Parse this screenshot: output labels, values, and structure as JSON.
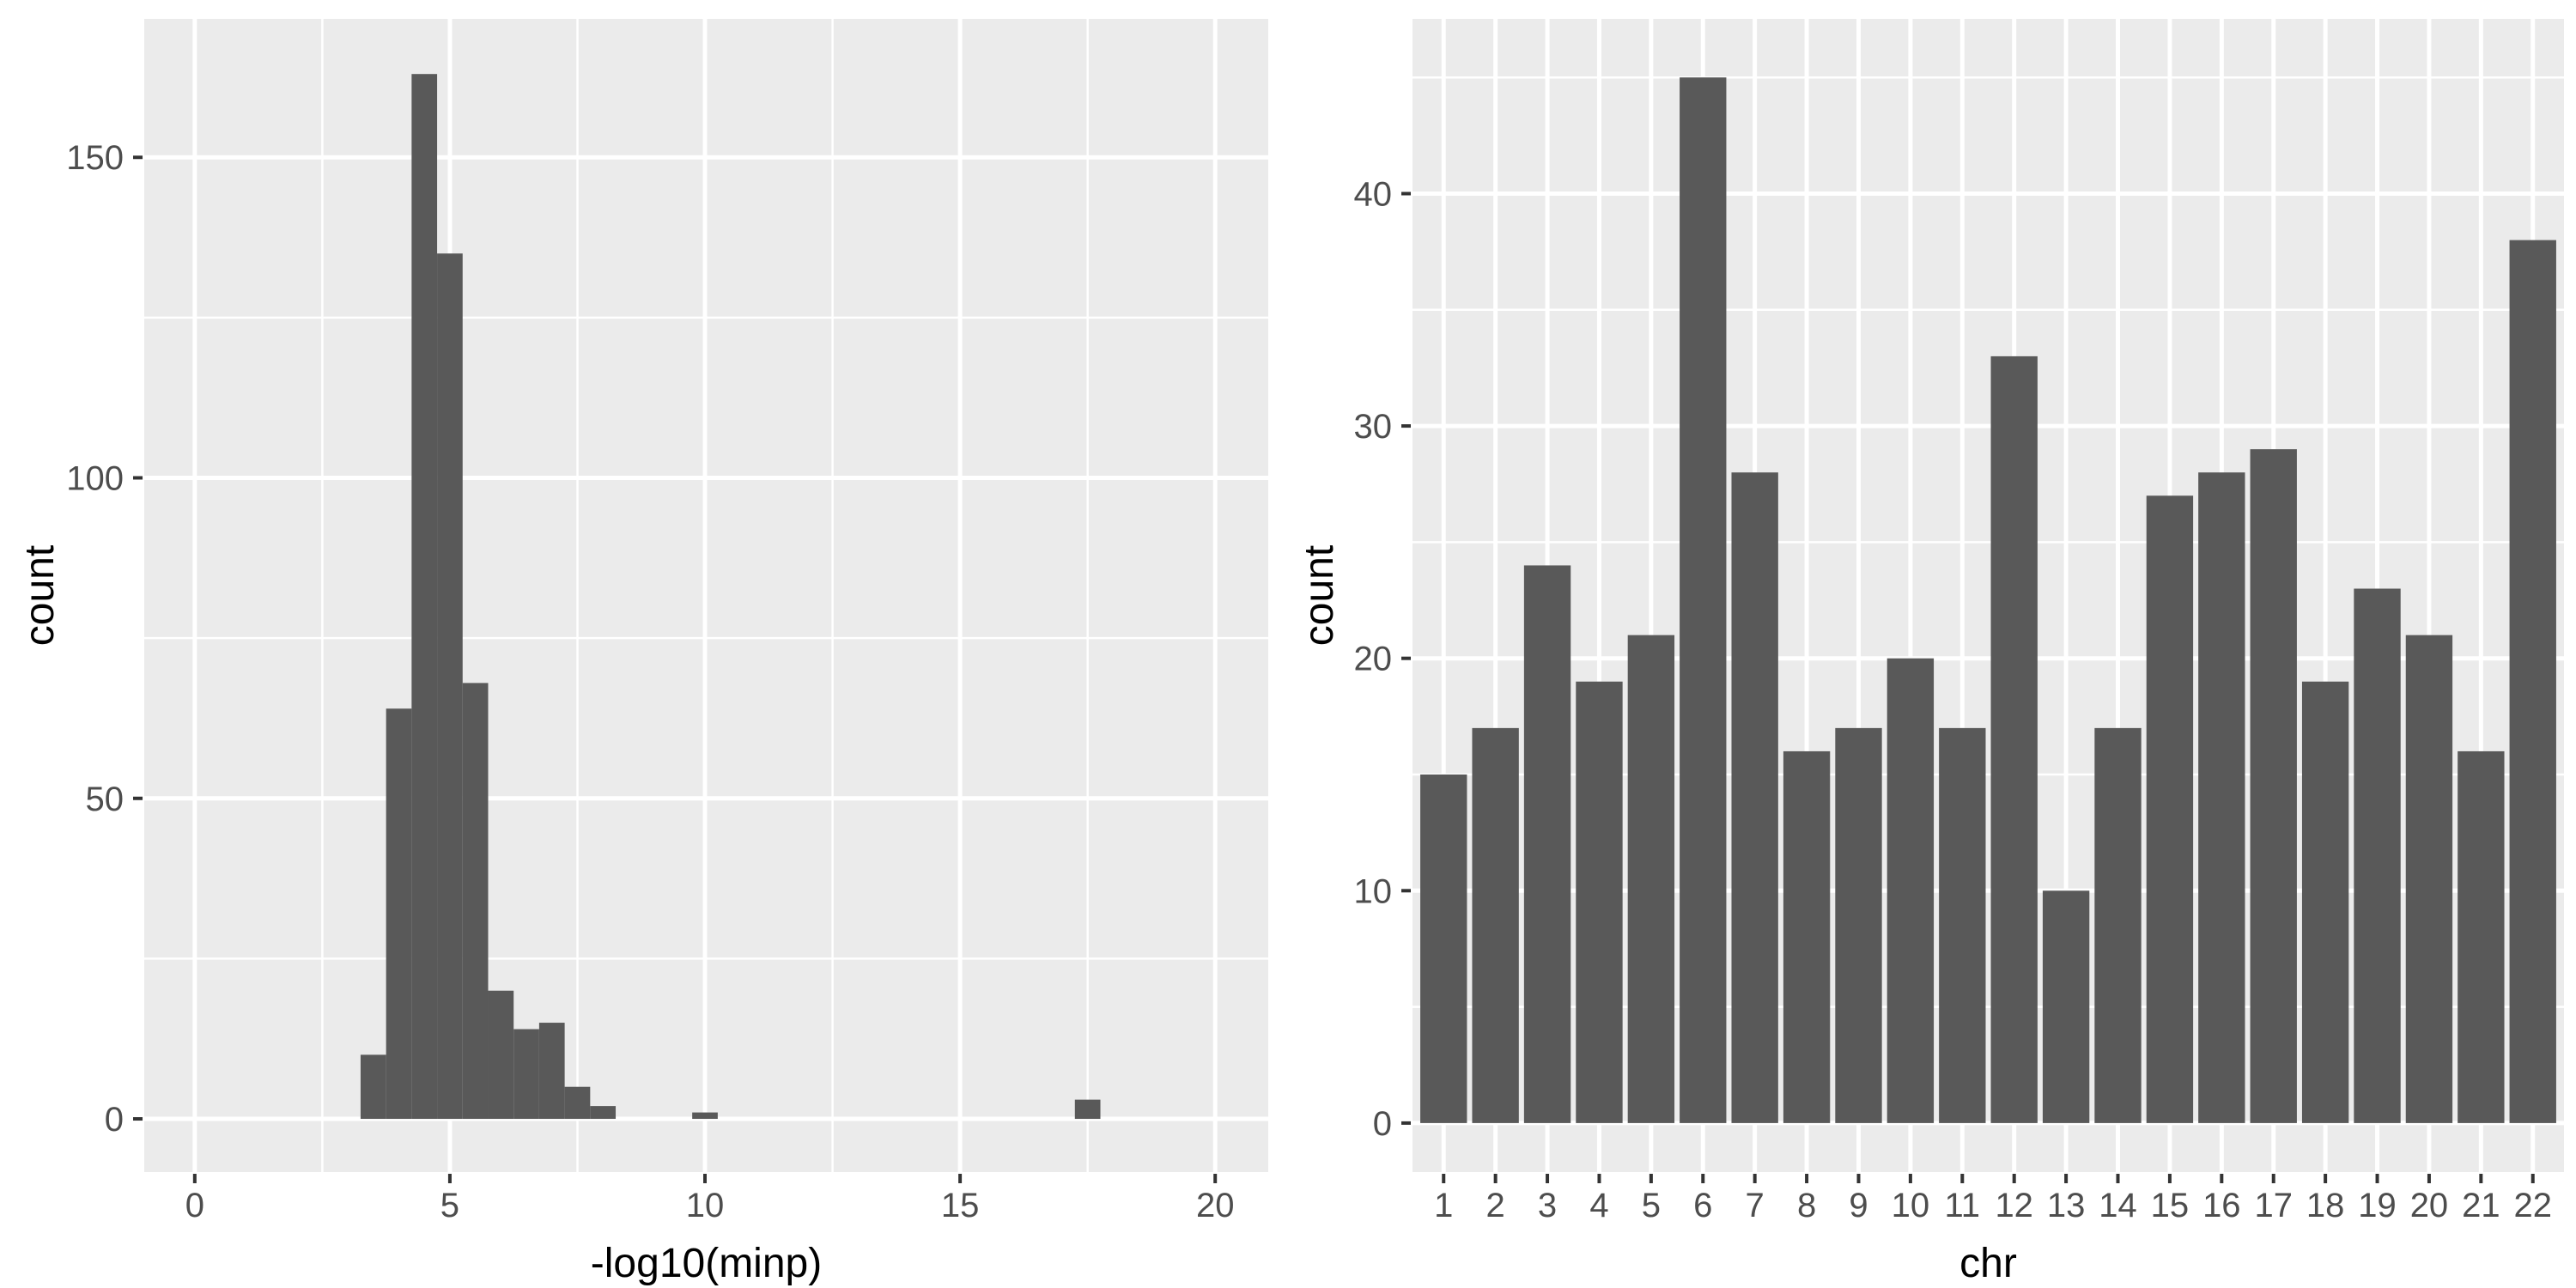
{
  "figure": {
    "description": "Two-panel statistical figure: histogram of -log10(minp) and bar chart of SNP counts per chromosome",
    "background": "#ffffff"
  },
  "style": {
    "panel_bg": "#ebebeb",
    "bar_fill": "#595959",
    "grid_color": "#ffffff",
    "tick_color": "#333333",
    "tick_label_color": "#4d4d4d",
    "title_color": "#000000"
  },
  "chart_data": [
    {
      "id": "minp-histogram",
      "type": "bar",
      "subtype": "histogram",
      "title": "",
      "xlabel": "-log10(minp)",
      "ylabel": "count",
      "x_ticks": [
        0,
        5,
        10,
        15,
        20
      ],
      "y_ticks": [
        0,
        50,
        100,
        150
      ],
      "xlim": [
        -0.99,
        21.04
      ],
      "ylim": [
        -8.3,
        171.6
      ],
      "grid": true,
      "legend": "none",
      "binwidth": 0.5,
      "bins": [
        {
          "x0": 3.25,
          "count": 10
        },
        {
          "x0": 3.75,
          "count": 64
        },
        {
          "x0": 4.25,
          "count": 163
        },
        {
          "x0": 4.75,
          "count": 135
        },
        {
          "x0": 5.25,
          "count": 68
        },
        {
          "x0": 5.75,
          "count": 20
        },
        {
          "x0": 6.25,
          "count": 14
        },
        {
          "x0": 6.75,
          "count": 15
        },
        {
          "x0": 7.25,
          "count": 5
        },
        {
          "x0": 7.75,
          "count": 2
        },
        {
          "x0": 9.75,
          "count": 1
        },
        {
          "x0": 17.25,
          "count": 3
        }
      ]
    },
    {
      "id": "chr-bar-chart",
      "type": "bar",
      "subtype": "category",
      "title": "",
      "xlabel": "chr",
      "ylabel": "count",
      "categories": [
        "1",
        "2",
        "3",
        "4",
        "5",
        "6",
        "7",
        "8",
        "9",
        "10",
        "11",
        "12",
        "13",
        "14",
        "15",
        "16",
        "17",
        "18",
        "19",
        "20",
        "21",
        "22"
      ],
      "values": [
        15,
        17,
        24,
        19,
        21,
        45,
        28,
        16,
        17,
        20,
        17,
        33,
        10,
        17,
        27,
        28,
        29,
        19,
        23,
        21,
        16,
        38
      ],
      "y_ticks": [
        0,
        10,
        20,
        30,
        40
      ],
      "ylim": [
        -2.11,
        47.52
      ],
      "bar_rel_width": 0.9,
      "grid": true,
      "legend": "none"
    }
  ]
}
